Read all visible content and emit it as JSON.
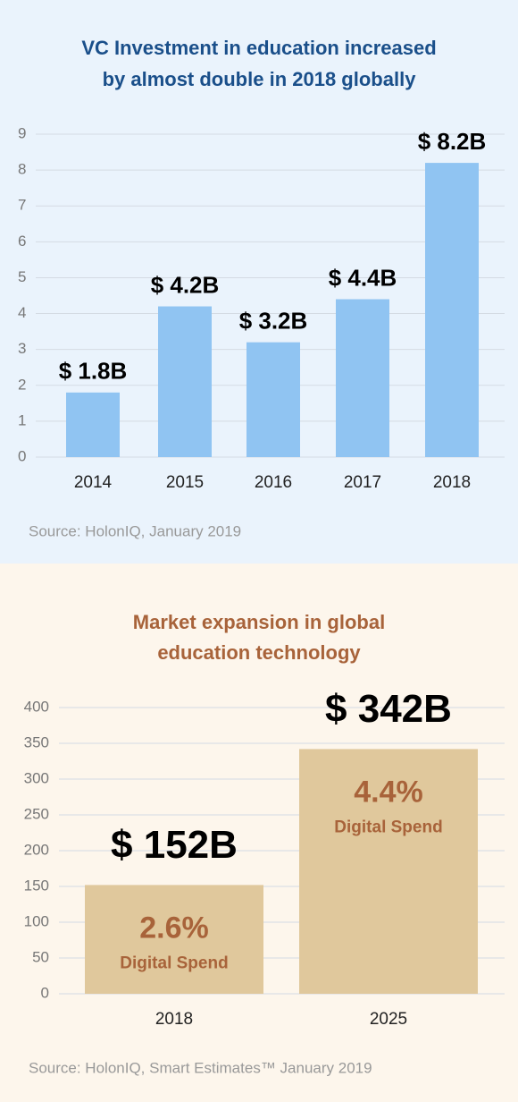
{
  "chart_data": [
    {
      "type": "bar",
      "title": [
        "VC Investment in education increased",
        "by almost double in 2018 globally"
      ],
      "categories": [
        "2014",
        "2015",
        "2016",
        "2017",
        "2018"
      ],
      "values": [
        1.8,
        4.2,
        3.2,
        4.4,
        8.2
      ],
      "value_labels": [
        "$ 1.8B",
        "$ 4.2B",
        "$ 3.2B",
        "$ 4.4B",
        "$ 8.2B"
      ],
      "color": "#90c4f2",
      "ylim": [
        0,
        9
      ],
      "yticks": [
        0,
        1,
        2,
        3,
        4,
        5,
        6,
        7,
        8,
        9
      ],
      "grid": true,
      "source": "Source: HolonIQ, January 2019"
    },
    {
      "type": "bar",
      "title": [
        "Market expansion in global",
        "education technology"
      ],
      "categories": [
        "2018",
        "2025"
      ],
      "values": [
        152,
        342
      ],
      "value_labels": [
        "$ 152B",
        "$ 342B"
      ],
      "inner_labels": [
        {
          "share": "2.6%",
          "text": "Digital Spend"
        },
        {
          "share": "4.4%",
          "text": "Digital Spend"
        }
      ],
      "color": "#e0c89c",
      "ylim": [
        0,
        400
      ],
      "yticks": [
        0,
        50,
        100,
        150,
        200,
        250,
        300,
        350,
        400
      ],
      "grid": true,
      "source": "Source: HolonIQ, Smart Estimates™ January 2019"
    }
  ]
}
